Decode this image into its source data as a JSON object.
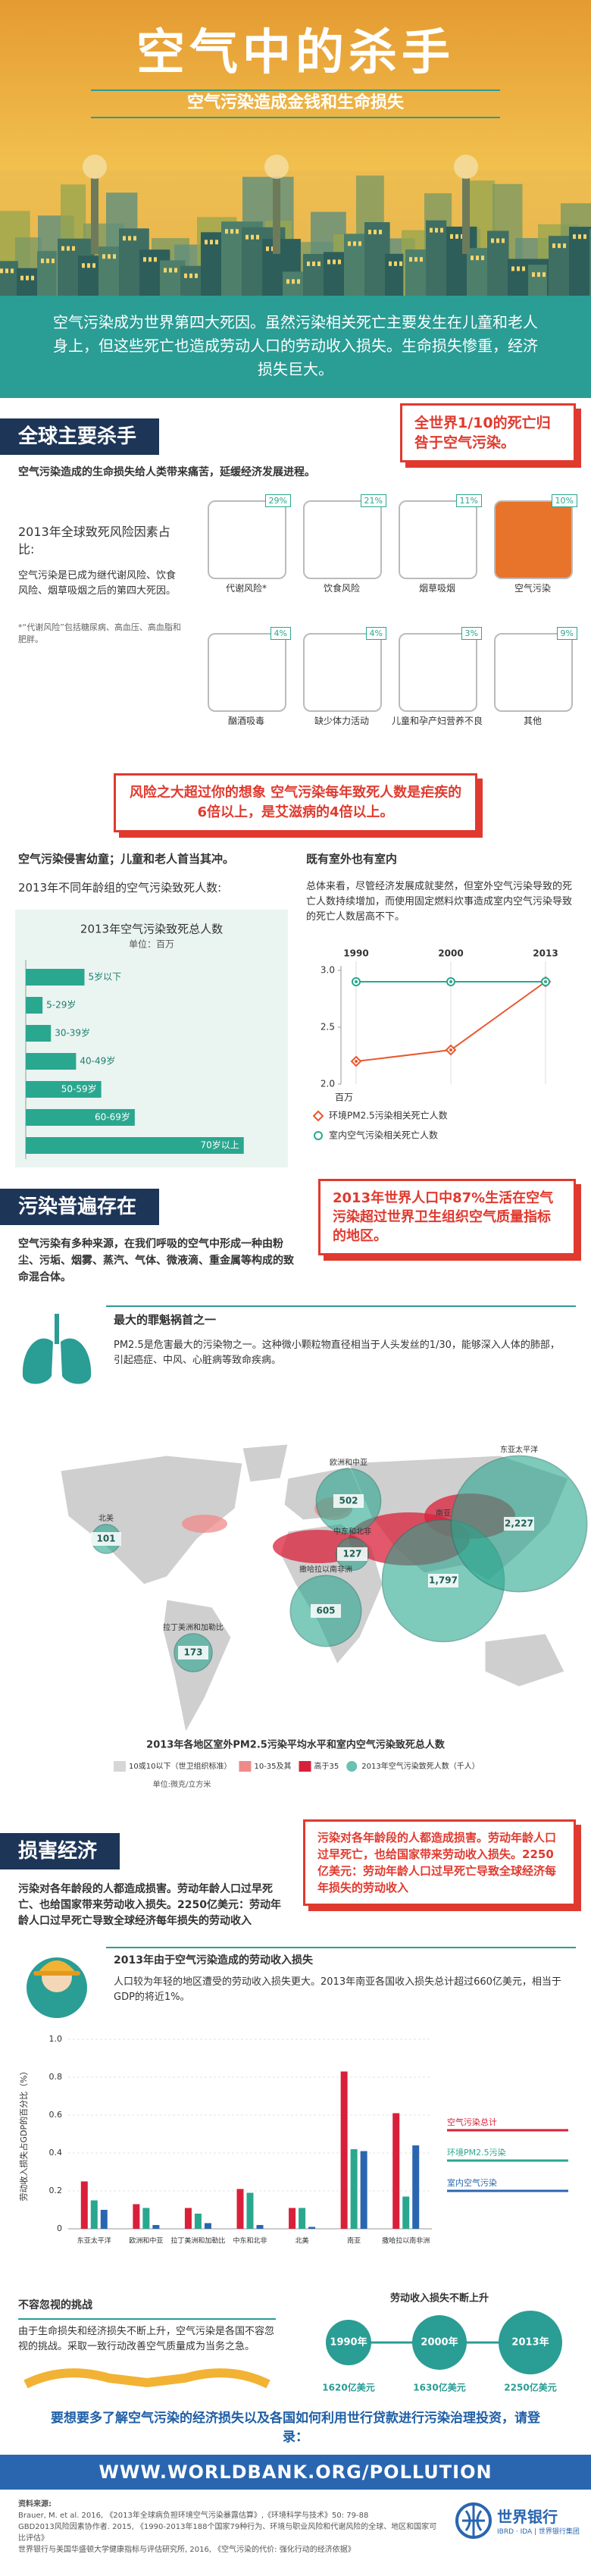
{
  "header": {
    "title": "空气中的杀手",
    "subtitle": "空气污染造成金钱和生命损失"
  },
  "intro": "空气污染成为世界第四大死因。虽然污染相关死亡主要发生在儿童和老人身上，但这些死亡也造成劳动人口的劳动收入损失。生命损失惨重，经济损失巨大。",
  "section1": {
    "heading": "全球主要杀手",
    "callout": "全世界1/10的死亡归咎于空气污染。",
    "lead": "空气污染造成的生命损失给人类带来痛苦，延缓经济发展进程。",
    "risk_title": "2013年全球致死风险因素占比:",
    "risk_text": "空气污染是已成为继代谢风险、饮食风险、烟草吸烟之后的第四大死因。",
    "risk_note": "*“代谢风险”包括糖尿病、高血压、高血脂和肥胖。",
    "risks": [
      {
        "label": "代谢风险*",
        "share": "29%",
        "color": "#ffffff"
      },
      {
        "label": "饮食风险",
        "share": "21%",
        "color": "#ffffff"
      },
      {
        "label": "烟草吸烟",
        "share": "11%",
        "color": "#ffffff"
      },
      {
        "label": "空气污染",
        "share": "10%",
        "color": "#e8742c"
      },
      {
        "label": "酗酒吸毒",
        "share": "4%",
        "color": "#ffffff"
      },
      {
        "label": "缺少体力活动",
        "share": "4%",
        "color": "#ffffff"
      },
      {
        "label": "儿童和孕产妇营养不良",
        "share": "3%",
        "color": "#ffffff"
      },
      {
        "label": "其他",
        "share": "9%",
        "color": "#ffffff"
      }
    ]
  },
  "callout2": "风险之大超过你的想象 空气污染每年致死人数是疟疾的6倍以上，是艾滋病的4倍以上。",
  "age_panel": {
    "heading": "空气污染侵害幼童；儿童和老人首当其冲。",
    "subheading": "2013年不同年龄组的空气污染致死人数:"
  },
  "trend_panel": {
    "heading": "既有室外也有室内",
    "text": "总体来看，尽管经济发展成就斐然，但室外空气污染导致的死亡人数持续增加，而使用固定燃料炊事造成室内空气污染导致的死亡人数居高不下。"
  },
  "section2": {
    "heading": "污染普遍存在",
    "callout": "2013年世界人口中87%生活在空气污染超过世界卫生组织空气质量指标的地区。",
    "text": "空气污染有多种来源，在我们呼吸的空气中形成一种由粉尘、污垢、烟雾、蒸汽、气体、微液滴、重金属等构成的致命混合体。",
    "pm_heading": "最大的罪魁祸首之一",
    "pm_text": "PM2.5是危害最大的污染物之一。这种微小颗粒物直径相当于人头发丝的1/30，能够深入人体的肺部，引起癌症、中风、心脏病等致命疾病。"
  },
  "section3": {
    "heading": "损害经济",
    "callout": "污染对各年龄段的人都造成损害。劳动年龄人口过早死亡，也给国家带来劳动收入损失。2250亿美元：劳动年龄人口过早死亡导致全球经济每年损失的劳动收入",
    "text": "污染对各年龄段的人都造成损害。劳动年龄人口过早死亡、也给国家带来劳动收入损失。2250亿美元：劳动年龄人口过早死亡导致全球经济每年损失的劳动收入",
    "loss_text": "人口较为年轻的地区遭受的劳动收入损失更大。2013年南亚各国收入损失总计超过660亿美元，相当于GDP的将近1%。"
  },
  "challenge": {
    "heading": "不容忽视的挑战",
    "text": "由于生命损失和经济损失不断上升，空气污染是各国不容忽视的挑战。采取一致行动改善空气质量成为当务之急。",
    "trend_title": "劳动收入损失不断上升",
    "points": [
      {
        "year": "1990年",
        "amount": "1620亿美元"
      },
      {
        "year": "2000年",
        "amount": "1630亿美元"
      },
      {
        "year": "2013年",
        "amount": "2250亿美元"
      }
    ]
  },
  "footer": {
    "cta": "要想要多了解空气污染的经济损失以及各国如何利用世行贷款进行污染治理投资，请登录：",
    "url": "WWW.WORLDBANK.ORG/POLLUTION",
    "sources_title": "资料来源:",
    "sources": [
      "Brauer, M. et al. 2016, 《2013年全球病负担环境空气污染暴露估算》,《环境科学与技术》50: 79-88",
      "GBD2013风险因素协作者. 2015, 《1990-2013年188个国家79种行为、环境与职业风险和代谢风险的全球、地区和国家可比评估》",
      "世界银行与美国华盛顿大学健康指标与评估研究所, 2016, 《空气污染的代价: 强化行动的经济依据》"
    ],
    "logo": "世界银行",
    "logo_sub": "IBRD · IDA | 世界银行集团"
  },
  "chart_data": [
    {
      "type": "bar",
      "orientation": "horizontal",
      "title": "2013年空气污染致死总人数",
      "unit": "单位：百万",
      "categories": [
        "5岁以下",
        "5-29岁",
        "30-39岁",
        "40-49岁",
        "50-59岁",
        "60-69岁",
        "70岁以上"
      ],
      "values": [
        0.7,
        0.2,
        0.3,
        0.6,
        0.9,
        1.3,
        2.6
      ],
      "color": "#2aa78f",
      "xlim": [
        0,
        3
      ]
    },
    {
      "type": "line",
      "categories": [
        "1990",
        "2000",
        "2013"
      ],
      "y_unit": "百万",
      "ylim": [
        2,
        3
      ],
      "yticks": [
        {
          "value": 3,
          "label": "3.0"
        },
        {
          "value": 2.5,
          "label": "2.5"
        },
        {
          "value": 2,
          "label": "2.0"
        }
      ],
      "series": [
        {
          "name": "环境PM2.5污染相关死亡人数",
          "color": "#e8582e",
          "marker": "diamond",
          "values": [
            2.2,
            2.3,
            2.9
          ]
        },
        {
          "name": "室内空气污染相关死亡人数",
          "color": "#2aa78f",
          "marker": "circle",
          "values": [
            2.9,
            2.9,
            2.9
          ]
        }
      ]
    },
    {
      "type": "bubble-map",
      "title": "2013年各地区室外PM2.5污染平均水平和室内空气污染致死总人数",
      "unit": "单位:微克/立方米",
      "categories": [
        "北美",
        "拉丁美洲和加勒比",
        "欧洲和中亚",
        "中东和北非",
        "撒哈拉以南非洲",
        "南亚",
        "东亚太平洋"
      ],
      "values": [
        101,
        173,
        502,
        127,
        605,
        1797,
        2227
      ],
      "value_labels": [
        "101",
        "173",
        "502",
        "127",
        "605",
        "1,797",
        "2,227"
      ],
      "color": "#2aa78f",
      "legend": [
        {
          "label": "10或10以下（世卫组织标准）",
          "color": "#d6d6d6"
        },
        {
          "label": "10-35及其",
          "color": "#f08a8a"
        },
        {
          "label": "高于35",
          "color": "#d9203a"
        },
        {
          "label": "2013年空气污染致死人数（千人）",
          "color": "#2aa78f"
        }
      ]
    },
    {
      "type": "bar",
      "title": "2013年由于空气污染造成的劳动收入损失",
      "y_label": "劳动收入损失占GDP的百分比（%）",
      "categories": [
        "东亚太平洋",
        "欧洲和中亚",
        "拉丁美洲和加勒比",
        "中东和北非",
        "北美",
        "南亚",
        "撒哈拉以南非洲"
      ],
      "ylim": [
        0,
        1
      ],
      "yticks": [
        0,
        0.2,
        0.4,
        0.6,
        0.8,
        {
          "value": 1,
          "label": "1.0"
        }
      ],
      "series": [
        {
          "name": "空气污染总计",
          "color": "#d9203a",
          "values": [
            0.25,
            0.13,
            0.11,
            0.21,
            0.11,
            0.83,
            0.61
          ]
        },
        {
          "name": "环境PM2.5污染",
          "color": "#2aa78f",
          "values": [
            0.15,
            0.11,
            0.08,
            0.19,
            0.11,
            0.42,
            0.17
          ]
        },
        {
          "name": "室内空气污染",
          "color": "#2a66b0",
          "values": [
            0.1,
            0.02,
            0.03,
            0.02,
            0.01,
            0.41,
            0.44
          ]
        }
      ]
    }
  ]
}
